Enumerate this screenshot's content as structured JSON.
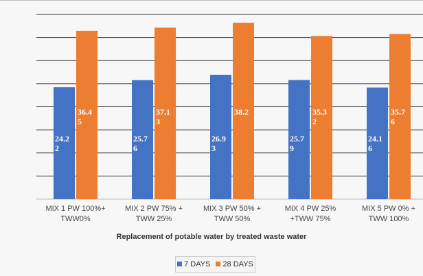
{
  "chart_data": {
    "type": "bar",
    "x_label": "Replacement of potable water by treated waste water",
    "categories": [
      "MIX 1 PW 100%+ TWW0%",
      "MIX 2 PW 75% + TWW 25%",
      "MIX 3 PW 50% + TWW 50%",
      "MIX 4 PW 25% +TWW 75%",
      "MIX 5 PW 0% + TWW 100%"
    ],
    "series": [
      {
        "name": "7 DAYS",
        "color": "#4472c4",
        "values": [
          24.22,
          25.76,
          26.93,
          25.79,
          24.16
        ]
      },
      {
        "name": "28 DAYS",
        "color": "#ed7d31",
        "values": [
          36.45,
          37.13,
          38.2,
          35.32,
          35.76
        ]
      }
    ],
    "ylim": [
      0,
      40
    ],
    "yticks": [
      0,
      5,
      10,
      15,
      20,
      25,
      30,
      35,
      40
    ],
    "grid": true,
    "legend": "bottom"
  }
}
